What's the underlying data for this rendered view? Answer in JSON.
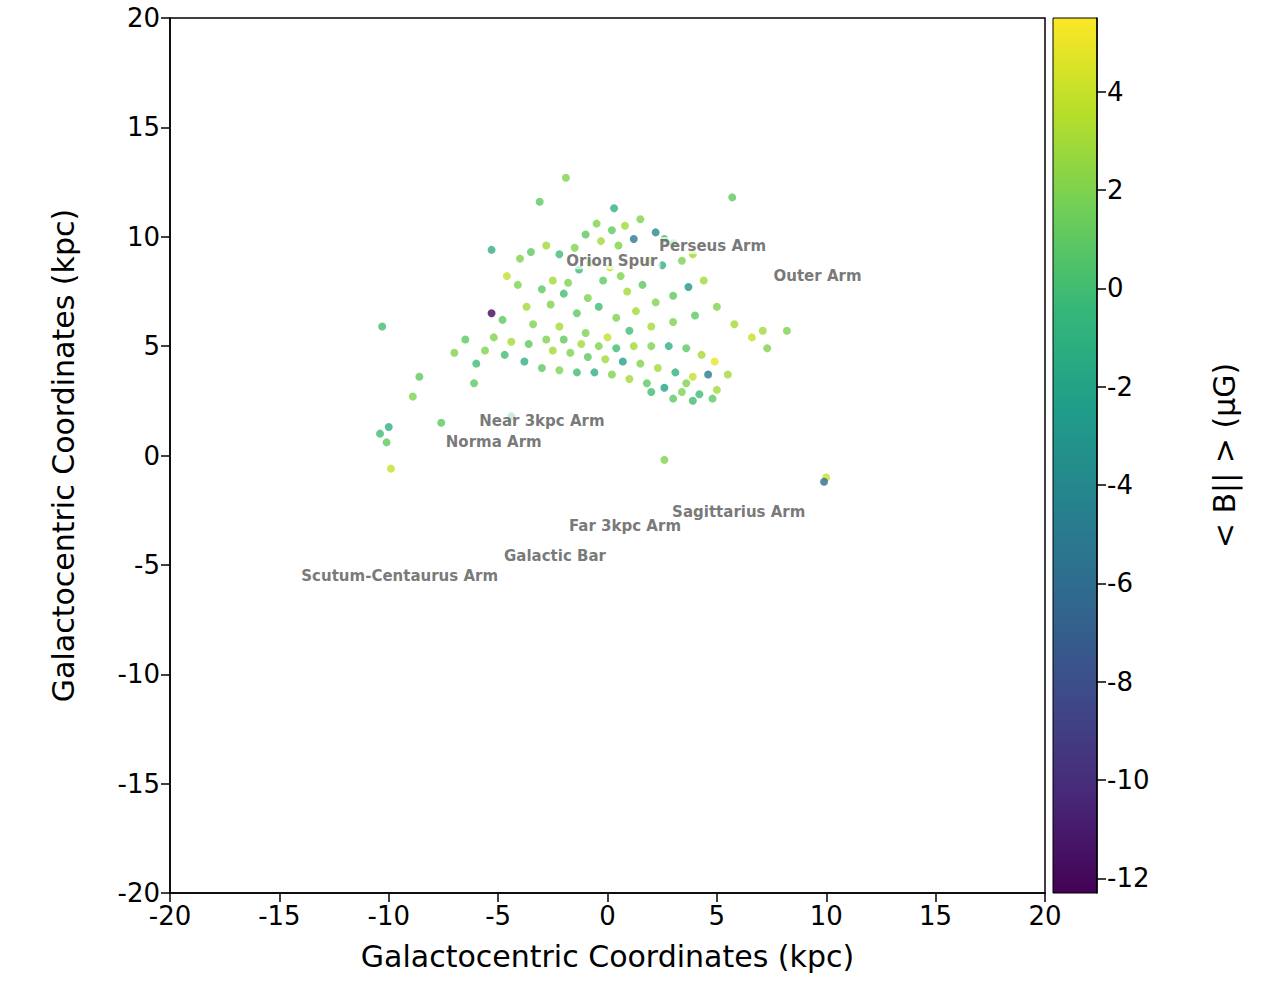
{
  "chart_data": {
    "type": "scatter",
    "x_label": "Galactocentric Coordinates (kpc)",
    "y_label": "Galactocentric Coordinates (kpc)",
    "xlim": [
      -20,
      20
    ],
    "ylim": [
      -20,
      20
    ],
    "xticks": [
      -20,
      -15,
      -10,
      -5,
      0,
      5,
      10,
      15,
      20
    ],
    "yticks": [
      -20,
      -15,
      -10,
      -5,
      0,
      5,
      10,
      15,
      20
    ],
    "grid": false,
    "marker": "circle",
    "colorbar": {
      "label": "< B|| > (μG)",
      "lim": [
        -12.3,
        5.5
      ],
      "ticks": [
        -12,
        -10,
        -8,
        -6,
        -4,
        -2,
        0,
        2,
        4
      ],
      "colors": [
        "#440154",
        "#482878",
        "#3e4989",
        "#31688e",
        "#26828e",
        "#1f9e89",
        "#35b779",
        "#6ece58",
        "#b5de2b",
        "#fde725"
      ]
    },
    "annotations": [
      {
        "text": "Perseus Arm",
        "x": 4.8,
        "y": 9.6
      },
      {
        "text": "Outer Arm",
        "x": 9.6,
        "y": 8.2
      },
      {
        "text": "Orion Spur",
        "x": 0.2,
        "y": 8.9
      },
      {
        "text": "Norma Arm",
        "x": -5.2,
        "y": 0.6
      },
      {
        "text": "Scutum-Centaurus Arm",
        "x": -9.5,
        "y": -5.5
      },
      {
        "text": "Sagittarius Arm",
        "x": 6.0,
        "y": -2.6
      },
      {
        "text": "Near 3kpc Arm",
        "x": -3.0,
        "y": 1.6
      },
      {
        "text": "Far 3kpc Arm",
        "x": 0.8,
        "y": -3.2
      },
      {
        "text": "Galactic Bar",
        "x": -2.4,
        "y": -4.6
      }
    ],
    "x": [
      -0.5,
      0.2,
      0.8,
      1.5,
      2.2,
      2.6,
      3.0,
      1.2,
      0.5,
      -0.3,
      -1.0,
      -1.5,
      -2.2,
      -2.8,
      -3.5,
      -4.0,
      -5.3,
      -0.8,
      0.1,
      0.6,
      -0.2,
      -1.3,
      1.9,
      2.5,
      3.4,
      3.9,
      -1.8,
      -2.5,
      -3.0,
      -2.0,
      -0.9,
      0.9,
      1.6,
      -4.1,
      -4.6,
      -3.7,
      -2.6,
      -1.4,
      -0.4,
      0.4,
      1.3,
      2.2,
      3.0,
      3.7,
      4.4,
      -4.8,
      -3.4,
      -2.2,
      -1.0,
      0.0,
      1.0,
      2.0,
      3.0,
      4.0,
      5.0,
      5.8,
      6.6,
      7.3,
      7.1,
      -6.5,
      -5.6,
      -4.7,
      -3.8,
      -3.0,
      -2.2,
      -1.4,
      -0.6,
      0.2,
      1.0,
      1.8,
      2.6,
      3.4,
      4.2,
      5.0,
      3.0,
      2.0,
      -2.5,
      -1.7,
      -0.9,
      -0.1,
      0.7,
      1.5,
      2.3,
      3.1,
      3.9,
      4.6,
      4.9,
      4.3,
      3.6,
      2.8,
      2.0,
      1.2,
      0.4,
      -0.4,
      -1.2,
      -2.0,
      -2.8,
      -3.6,
      -4.4,
      -5.2,
      -6.0,
      -7.0,
      -6.1,
      3.6,
      5.5,
      4.8,
      3.9,
      -10.3,
      -10.4,
      -10.0,
      -10.1,
      -9.9,
      -5.3,
      -1.9,
      5.7,
      10.0,
      9.9,
      8.2,
      -8.6,
      -8.9,
      -7.6,
      -4.4,
      2.6,
      -3.1,
      0.3
    ],
    "y": [
      10.6,
      10.3,
      10.5,
      10.8,
      10.2,
      9.9,
      9.7,
      9.9,
      9.6,
      9.8,
      10.1,
      9.5,
      9.2,
      9.6,
      9.3,
      9.0,
      9.4,
      8.8,
      8.6,
      8.2,
      8.0,
      8.5,
      8.9,
      8.7,
      8.9,
      9.2,
      7.9,
      8.0,
      7.6,
      7.4,
      7.2,
      7.5,
      7.8,
      7.8,
      8.2,
      6.8,
      6.9,
      6.5,
      6.8,
      6.3,
      6.6,
      7.0,
      7.3,
      7.7,
      8.0,
      6.2,
      6.0,
      5.9,
      5.6,
      5.4,
      5.7,
      5.9,
      6.1,
      6.4,
      6.8,
      6.0,
      5.4,
      4.9,
      5.7,
      5.3,
      4.8,
      4.6,
      4.3,
      4.0,
      3.9,
      3.8,
      3.8,
      3.7,
      3.5,
      3.3,
      3.1,
      2.9,
      2.8,
      3.0,
      2.6,
      2.9,
      4.8,
      4.7,
      4.5,
      4.4,
      4.3,
      4.2,
      4.0,
      3.8,
      3.6,
      3.7,
      4.3,
      4.6,
      4.9,
      5.0,
      5.0,
      5.0,
      4.9,
      5.0,
      5.1,
      5.3,
      5.3,
      5.1,
      5.2,
      5.4,
      4.2,
      4.7,
      3.3,
      3.3,
      3.7,
      2.6,
      2.5,
      5.9,
      1.0,
      1.3,
      0.6,
      -0.6,
      6.5,
      12.7,
      11.8,
      -1.0,
      -1.2,
      5.7,
      3.6,
      2.7,
      1.5,
      1.8,
      -0.2,
      11.6,
      11.3
    ],
    "values": [
      2,
      1,
      3,
      2,
      -4,
      0,
      1,
      -5,
      2,
      3,
      1,
      2,
      0,
      3,
      1,
      2,
      -1,
      3,
      4,
      2,
      1,
      0,
      3,
      -1,
      2,
      3,
      2,
      3,
      1,
      0,
      2,
      3,
      1,
      2,
      4,
      3,
      2,
      1,
      0,
      2,
      3,
      2,
      1,
      -3,
      3,
      1,
      2,
      3,
      2,
      4,
      0,
      3,
      2,
      1,
      2,
      3,
      4,
      2,
      3,
      1,
      2,
      0,
      -1,
      1,
      2,
      0,
      -1,
      2,
      3,
      1,
      -2,
      2,
      0,
      3,
      1,
      0,
      3,
      2,
      1,
      3,
      -2,
      2,
      3,
      -1,
      4,
      -5,
      5,
      3,
      1,
      -1,
      2,
      3,
      0,
      2,
      3,
      1,
      2,
      1,
      3,
      2,
      0,
      2,
      1,
      2,
      3,
      1,
      0,
      0,
      0,
      -1,
      1,
      4,
      -12,
      2,
      1,
      4,
      -6,
      2,
      1,
      2,
      1,
      0,
      2,
      1,
      -1
    ]
  }
}
